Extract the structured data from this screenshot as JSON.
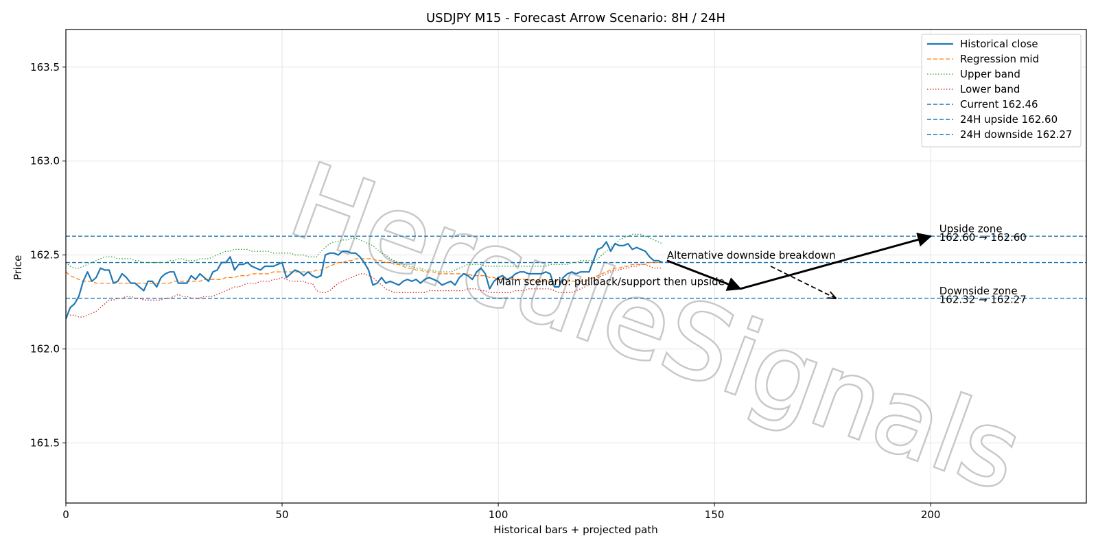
{
  "chart_data": {
    "type": "line",
    "title": "USDJPY M15 - Forecast Arrow Scenario: 8H / 24H",
    "xlabel": "Historical bars + projected path",
    "ylabel": "Price",
    "xlim": [
      0,
      236
    ],
    "ylim": [
      161.18,
      163.7
    ],
    "xticks": [
      0,
      50,
      100,
      150,
      200
    ],
    "yticks": [
      161.5,
      162.0,
      162.5,
      163.0,
      163.5
    ],
    "xtick_labels": [
      "0",
      "50",
      "100",
      "150",
      "200"
    ],
    "ytick_labels": [
      "161.5",
      "162.0",
      "162.5",
      "163.0",
      "163.5"
    ],
    "grid": true,
    "legend_position": "top-right",
    "watermark": "HerculeSignals",
    "series": [
      {
        "name": "Historical close",
        "color": "#1f77b4",
        "style": "solid",
        "values": [
          162.16,
          162.22,
          162.24,
          162.28,
          162.36,
          162.41,
          162.36,
          162.38,
          162.43,
          162.42,
          162.42,
          162.35,
          162.36,
          162.4,
          162.38,
          162.35,
          162.35,
          162.33,
          162.31,
          162.36,
          162.36,
          162.33,
          162.38,
          162.4,
          162.41,
          162.41,
          162.35,
          162.35,
          162.35,
          162.39,
          162.37,
          162.4,
          162.38,
          162.36,
          162.41,
          162.42,
          162.46,
          162.46,
          162.49,
          162.42,
          162.45,
          162.45,
          162.46,
          162.44,
          162.43,
          162.42,
          162.44,
          162.44,
          162.44,
          162.45,
          162.46,
          162.38,
          162.4,
          162.42,
          162.41,
          162.39,
          162.41,
          162.39,
          162.38,
          162.39,
          162.5,
          162.51,
          162.51,
          162.5,
          162.52,
          162.52,
          162.51,
          162.51,
          162.49,
          162.46,
          162.42,
          162.34,
          162.35,
          162.38,
          162.35,
          162.36,
          162.35,
          162.34,
          162.36,
          162.37,
          162.36,
          162.37,
          162.35,
          162.37,
          162.38,
          162.37,
          162.36,
          162.34,
          162.35,
          162.36,
          162.34,
          162.38,
          162.4,
          162.39,
          162.37,
          162.41,
          162.43,
          162.4,
          162.32,
          162.36,
          162.38,
          162.39,
          162.37,
          162.38,
          162.4,
          162.41,
          162.41,
          162.4,
          162.4,
          162.4,
          162.4,
          162.41,
          162.4,
          162.33,
          162.33,
          162.38,
          162.4,
          162.41,
          162.4,
          162.41,
          162.41,
          162.41,
          162.47,
          162.53,
          162.54,
          162.57,
          162.52,
          162.56,
          162.55,
          162.55,
          162.56,
          162.53,
          162.54,
          162.53,
          162.52,
          162.49,
          162.47,
          162.47,
          162.46
        ]
      },
      {
        "name": "Regression mid",
        "color": "#ff7f0e",
        "style": "dashed",
        "values": [
          162.41,
          162.39,
          162.38,
          162.37,
          162.36,
          162.36,
          162.36,
          162.35,
          162.35,
          162.35,
          162.35,
          162.35,
          162.35,
          162.35,
          162.35,
          162.35,
          162.35,
          162.35,
          162.35,
          162.35,
          162.35,
          162.35,
          162.35,
          162.35,
          162.35,
          162.36,
          162.36,
          162.36,
          162.36,
          162.36,
          162.36,
          162.36,
          162.37,
          162.37,
          162.37,
          162.37,
          162.37,
          162.38,
          162.38,
          162.38,
          162.39,
          162.39,
          162.39,
          162.4,
          162.4,
          162.4,
          162.4,
          162.4,
          162.41,
          162.41,
          162.41,
          162.41,
          162.41,
          162.41,
          162.41,
          162.41,
          162.41,
          162.41,
          162.42,
          162.42,
          162.43,
          162.44,
          162.45,
          162.46,
          162.46,
          162.47,
          162.47,
          162.48,
          162.48,
          162.48,
          162.48,
          162.48,
          162.47,
          162.47,
          162.46,
          162.46,
          162.45,
          162.45,
          162.44,
          162.43,
          162.43,
          162.42,
          162.42,
          162.41,
          162.41,
          162.41,
          162.4,
          162.4,
          162.4,
          162.4,
          162.4,
          162.4,
          162.4,
          162.4,
          162.39,
          162.39,
          162.39,
          162.39,
          162.38,
          162.38,
          162.37,
          162.37,
          162.37,
          162.37,
          162.37,
          162.37,
          162.37,
          162.37,
          162.36,
          162.36,
          162.36,
          162.36,
          162.36,
          162.36,
          162.36,
          162.36,
          162.36,
          162.36,
          162.36,
          162.36,
          162.36,
          162.37,
          162.38,
          162.39,
          162.4,
          162.41,
          162.42,
          162.43,
          162.43,
          162.44,
          162.44,
          162.45,
          162.45,
          162.45,
          162.45,
          162.46,
          162.46,
          162.46,
          162.46
        ]
      },
      {
        "name": "Upper band",
        "color": "#2ca02c",
        "style": "dotted",
        "values": [
          162.46,
          162.44,
          162.43,
          162.43,
          162.44,
          162.45,
          162.46,
          162.47,
          162.48,
          162.49,
          162.49,
          162.49,
          162.48,
          162.48,
          162.48,
          162.48,
          162.47,
          162.47,
          162.46,
          162.46,
          162.46,
          162.46,
          162.46,
          162.46,
          162.47,
          162.47,
          162.48,
          162.48,
          162.47,
          162.47,
          162.47,
          162.48,
          162.48,
          162.48,
          162.49,
          162.5,
          162.51,
          162.52,
          162.52,
          162.53,
          162.53,
          162.53,
          162.53,
          162.52,
          162.52,
          162.52,
          162.52,
          162.52,
          162.51,
          162.51,
          162.51,
          162.51,
          162.51,
          162.5,
          162.5,
          162.5,
          162.49,
          162.49,
          162.49,
          162.52,
          162.54,
          162.56,
          162.57,
          162.57,
          162.58,
          162.58,
          162.59,
          162.59,
          162.58,
          162.57,
          162.56,
          162.55,
          162.53,
          162.51,
          162.5,
          162.48,
          162.47,
          162.46,
          162.45,
          162.44,
          162.44,
          162.43,
          162.43,
          162.42,
          162.42,
          162.42,
          162.41,
          162.41,
          162.41,
          162.41,
          162.42,
          162.43,
          162.44,
          162.45,
          162.45,
          162.45,
          162.45,
          162.44,
          162.44,
          162.44,
          162.44,
          162.44,
          162.44,
          162.44,
          162.44,
          162.44,
          162.44,
          162.44,
          162.44,
          162.44,
          162.44,
          162.44,
          162.45,
          162.45,
          162.45,
          162.45,
          162.45,
          162.46,
          162.46,
          162.47,
          162.47,
          162.47,
          162.47,
          162.48,
          162.5,
          162.52,
          162.54,
          162.56,
          162.58,
          162.59,
          162.6,
          162.61,
          162.61,
          162.61,
          162.6,
          162.59,
          162.58,
          162.57,
          162.56
        ]
      },
      {
        "name": "Lower band",
        "color": "#d62728",
        "style": "dotted",
        "values": [
          162.2,
          162.18,
          162.18,
          162.17,
          162.17,
          162.18,
          162.19,
          162.2,
          162.22,
          162.24,
          162.26,
          162.26,
          162.27,
          162.27,
          162.28,
          162.28,
          162.27,
          162.27,
          162.26,
          162.26,
          162.26,
          162.26,
          162.26,
          162.27,
          162.27,
          162.28,
          162.29,
          162.28,
          162.28,
          162.27,
          162.27,
          162.27,
          162.28,
          162.28,
          162.28,
          162.29,
          162.3,
          162.31,
          162.32,
          162.33,
          162.33,
          162.34,
          162.35,
          162.35,
          162.35,
          162.36,
          162.36,
          162.36,
          162.37,
          162.37,
          162.38,
          162.37,
          162.36,
          162.36,
          162.36,
          162.36,
          162.35,
          162.35,
          162.31,
          162.3,
          162.3,
          162.31,
          162.33,
          162.35,
          162.36,
          162.37,
          162.38,
          162.39,
          162.4,
          162.4,
          162.39,
          162.38,
          162.36,
          162.34,
          162.32,
          162.31,
          162.3,
          162.3,
          162.3,
          162.3,
          162.3,
          162.3,
          162.3,
          162.3,
          162.31,
          162.31,
          162.31,
          162.31,
          162.31,
          162.31,
          162.31,
          162.31,
          162.31,
          162.32,
          162.32,
          162.32,
          162.31,
          162.31,
          162.3,
          162.3,
          162.3,
          162.3,
          162.3,
          162.3,
          162.31,
          162.31,
          162.31,
          162.32,
          162.32,
          162.32,
          162.32,
          162.32,
          162.32,
          162.31,
          162.3,
          162.3,
          162.3,
          162.3,
          162.31,
          162.32,
          162.33,
          162.34,
          162.36,
          162.38,
          162.39,
          162.4,
          162.41,
          162.42,
          162.42,
          162.43,
          162.43,
          162.44,
          162.44,
          162.45,
          162.45,
          162.44,
          162.43,
          162.43,
          162.43
        ]
      }
    ],
    "hlines": [
      {
        "name": "Current 162.46",
        "y": 162.46,
        "color": "#1f77b4"
      },
      {
        "name": "24H upside 162.60",
        "y": 162.6,
        "color": "#1f77b4"
      },
      {
        "name": "24H downside 162.27",
        "y": 162.27,
        "color": "#1f77b4"
      }
    ],
    "arrows": [
      {
        "name": "main-arrow-leg1",
        "from": [
          139,
          162.47
        ],
        "to": [
          156,
          162.32
        ],
        "style": "solid"
      },
      {
        "name": "main-arrow-leg2",
        "from": [
          156,
          162.32
        ],
        "to": [
          200,
          162.6
        ],
        "style": "solid"
      },
      {
        "name": "alt-arrow",
        "from": [
          163,
          162.44
        ],
        "to": [
          178,
          162.27
        ],
        "style": "dashed"
      }
    ],
    "annotations": [
      {
        "name": "annot-alternative",
        "text": "Alternative downside breakdown",
        "x": 139,
        "y": 162.48
      },
      {
        "name": "annot-main",
        "text": "Main scenario: pullback/support then upside",
        "x": 99.5,
        "y": 162.34
      },
      {
        "name": "annot-upside-1",
        "text": "Upside zone",
        "x": 202,
        "y": 162.62
      },
      {
        "name": "annot-upside-2",
        "text": "162.60 → 162.60",
        "x": 202,
        "y": 162.575
      },
      {
        "name": "annot-downside-1",
        "text": "Downside zone",
        "x": 202,
        "y": 162.29
      },
      {
        "name": "annot-downside-2",
        "text": "162.32 → 162.27",
        "x": 202,
        "y": 162.245
      }
    ],
    "legend": [
      "Historical close",
      "Regression mid",
      "Upper band",
      "Lower band",
      "Current 162.46",
      "24H upside 162.60",
      "24H downside 162.27"
    ]
  }
}
